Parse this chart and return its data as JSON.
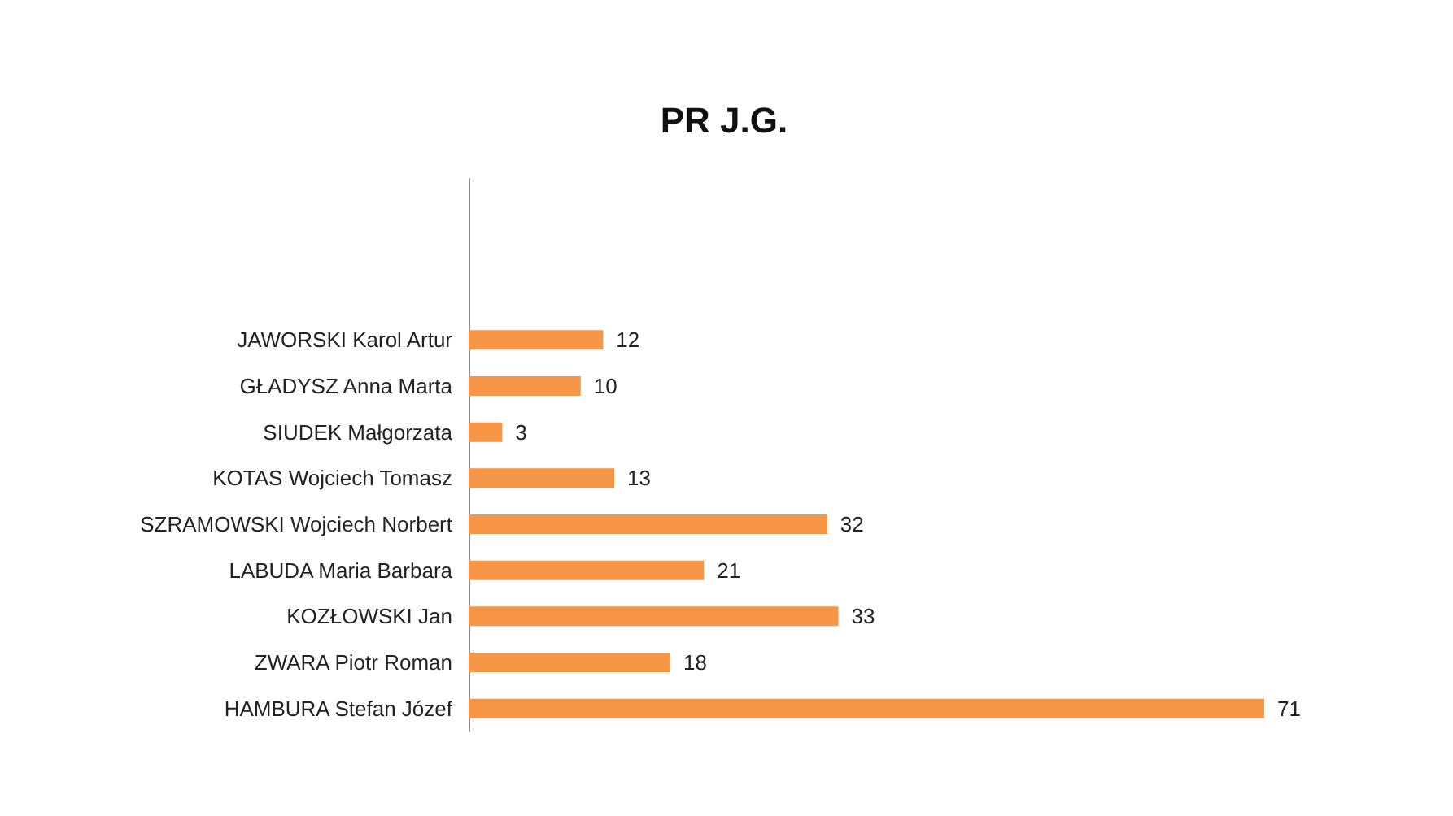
{
  "chart_data": {
    "type": "bar",
    "orientation": "horizontal",
    "title": "PR J.G.",
    "categories": [
      null,
      null,
      null,
      "JAWORSKI Karol Artur",
      "GŁADYSZ Anna Marta",
      "SIUDEK Małgorzata",
      "KOTAS Wojciech Tomasz",
      "SZRAMOWSKI Wojciech Norbert",
      "LABUDA Maria Barbara",
      "KOZŁOWSKI Jan",
      "ZWARA Piotr Roman",
      "HAMBURA Stefan Józef"
    ],
    "values": [
      null,
      null,
      null,
      12,
      10,
      3,
      13,
      32,
      21,
      33,
      18,
      71
    ],
    "color": "#f79646",
    "data_labels": true,
    "tick_labels": "y"
  }
}
